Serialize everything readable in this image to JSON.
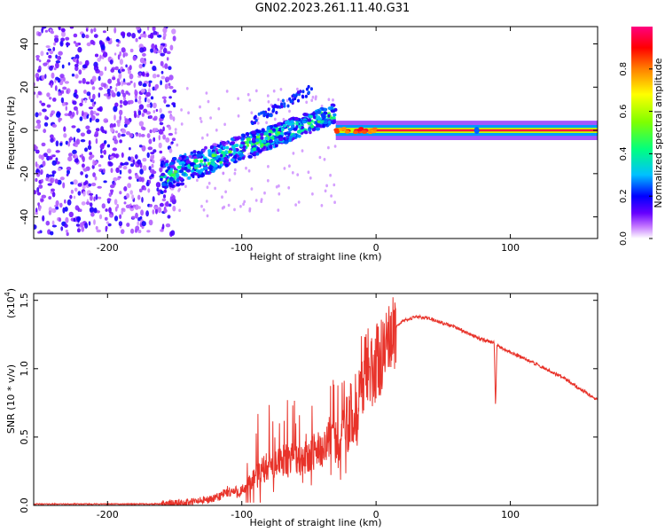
{
  "title": "GN02.2023.261.11.40.G31",
  "chart_data": [
    {
      "type": "heatmap",
      "name": "spectrogram",
      "xlabel": "Height of straight line (km)",
      "ylabel": "Frequency (Hz)",
      "xlim": [
        -255,
        165
      ],
      "ylim": [
        -50,
        48
      ],
      "xticks": [
        -200,
        -100,
        0,
        100
      ],
      "yticks": [
        -40,
        -20,
        0,
        20,
        40
      ],
      "colorbar": {
        "label": "Normalized spectral amplitude",
        "range": [
          0,
          1
        ],
        "ticks": [
          0.0,
          0.2,
          0.4,
          0.6,
          0.8
        ],
        "tick_labels": [
          "0.0",
          "0.2",
          "0.4",
          "0.6",
          "0.8"
        ]
      },
      "features": [
        {
          "name": "noise",
          "x_range": [
            -255,
            -150
          ],
          "freq_range": [
            -48,
            48
          ],
          "amplitude": 0.15
        },
        {
          "name": "signal-onset",
          "x_range": [
            -160,
            -30
          ],
          "freq_start": -22,
          "freq_end": 8,
          "amplitude": 0.4
        },
        {
          "name": "stable-signal",
          "x_range": [
            -30,
            165
          ],
          "freq": 0,
          "amplitude": 0.95
        }
      ]
    },
    {
      "type": "line",
      "name": "snr",
      "xlabel": "Height of straight line (km)",
      "ylabel": "SNR (10 * v/v)",
      "yscale_label": "(x10",
      "yscale_exp": "4",
      "xlim": [
        -255,
        165
      ],
      "ylim": [
        0,
        1.55
      ],
      "xticks": [
        -200,
        -100,
        0,
        100
      ],
      "yticks": [
        0.0,
        0.5,
        1.0,
        1.5
      ],
      "ytick_labels": [
        "0.0",
        "0.5",
        "1.0",
        "1.5"
      ],
      "color": "#e8332a",
      "series": [
        {
          "name": "SNR",
          "x": [
            -255,
            -200,
            -160,
            -140,
            -120,
            -110,
            -100,
            -90,
            -80,
            -70,
            -60,
            -50,
            -40,
            -30,
            -20,
            -12,
            -8,
            -5,
            0,
            5,
            10,
            15,
            20,
            30,
            40,
            50,
            60,
            70,
            80,
            88,
            89,
            90,
            100,
            120,
            140,
            165
          ],
          "y": [
            0.01,
            0.01,
            0.01,
            0.02,
            0.05,
            0.1,
            0.1,
            0.2,
            0.3,
            0.32,
            0.35,
            0.35,
            0.45,
            0.5,
            0.6,
            0.8,
            1.0,
            0.9,
            1.05,
            1.1,
            1.2,
            1.3,
            1.35,
            1.38,
            1.37,
            1.33,
            1.3,
            1.25,
            1.21,
            1.19,
            0.7,
            1.17,
            1.12,
            1.03,
            0.93,
            0.77
          ]
        }
      ]
    }
  ]
}
